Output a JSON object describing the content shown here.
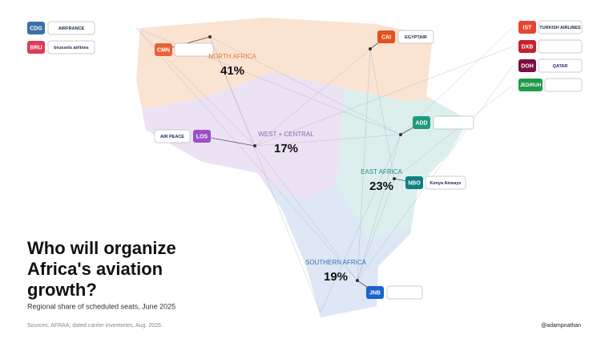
{
  "title_lines": [
    "Who will organize",
    "Africa's aviation",
    "growth?"
  ],
  "subtitle": "Regional share of scheduled seats, June 2025",
  "source": "Sources: AFRAA; dated carrier inventories, Aug. 2026.",
  "handle": "@adampnathan",
  "regions": [
    {
      "name": "NORTH AFRICA",
      "share": "41%"
    },
    {
      "name": "WEST + CENTRAL",
      "share": "17%"
    },
    {
      "name": "EAST AFRICA",
      "share": "23%"
    },
    {
      "name": "SOUTHERN AFRICA",
      "share": "19%"
    }
  ],
  "hubs": [
    {
      "code": "CDG",
      "airline": "AIRFRANCE"
    },
    {
      "code": "BRU",
      "airline": "brussels airlines"
    },
    {
      "code": "CMN"
    },
    {
      "code": "CAI",
      "airline": "EGYPTAIR"
    },
    {
      "code": "IST",
      "airline": "TURKISH AIRLINES"
    },
    {
      "code": "DXB"
    },
    {
      "code": "DOH",
      "airline": "QATAR"
    },
    {
      "code": "JED/RUH"
    },
    {
      "code": "LOS",
      "airline": "AIR PEACE"
    },
    {
      "code": "ADD"
    },
    {
      "code": "NBO",
      "airline": "Kenya Airways"
    },
    {
      "code": "JNB"
    }
  ]
}
